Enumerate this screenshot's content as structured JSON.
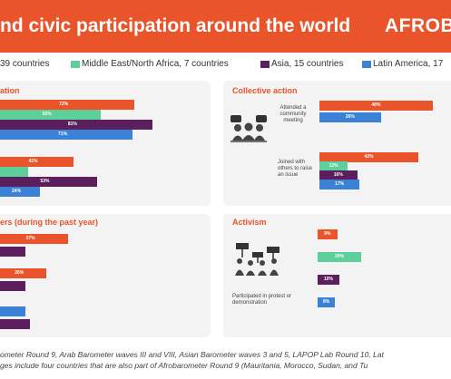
{
  "header": {
    "title": "nd civic participation around the world",
    "brand": "AFROBA"
  },
  "legend": [
    {
      "label": "39 countries",
      "color": "#e9542b"
    },
    {
      "label": "Middle East/North Africa, 7 countries",
      "color": "#5ccf9b"
    },
    {
      "label": "Asia, 15 countries",
      "color": "#5a1f5c"
    },
    {
      "label": "Latin America, 17",
      "color": "#3b82d6"
    }
  ],
  "colors": {
    "africa": "#e9542b",
    "mena": "#5ccf9b",
    "asia": "#5a1f5c",
    "latin_america": "#3b82d6",
    "accent": "#e9542b",
    "panel": "#f3f3f3"
  },
  "panels": {
    "top_left": {
      "title": "ation"
    },
    "collective": {
      "title": "Collective action"
    },
    "bottom_left": {
      "title": "ers (during the past year)"
    },
    "activism": {
      "title": "Activism"
    }
  },
  "chart_data": [
    {
      "type": "bar",
      "title": "ation",
      "unit": "%",
      "series": [
        {
          "name": "39 countries",
          "values": [
            72,
            41
          ]
        },
        {
          "name": "Middle East/North Africa, 7 countries",
          "values": [
            55,
            null
          ]
        },
        {
          "name": "Asia, 15 countries",
          "values": [
            81,
            53
          ]
        },
        {
          "name": "Latin America, 17",
          "values": [
            71,
            24
          ]
        }
      ]
    },
    {
      "type": "bar",
      "title": "Collective action",
      "unit": "%",
      "categories": [
        "Attended a community meeting",
        "Joined with others to raise an issue"
      ],
      "series": [
        {
          "name": "39 countries",
          "values": [
            48,
            42
          ]
        },
        {
          "name": "Middle East/North Africa, 7 countries",
          "values": [
            null,
            12
          ]
        },
        {
          "name": "Asia, 15 countries",
          "values": [
            null,
            16
          ]
        },
        {
          "name": "Latin America, 17",
          "values": [
            26,
            17
          ]
        }
      ]
    },
    {
      "type": "bar",
      "title": "ers (during the past year)",
      "unit": "%",
      "series": [
        {
          "name": "39 countries",
          "values": [
            37,
            26,
            null
          ]
        },
        {
          "name": "Asia, 15 countries",
          "values": [
            null,
            null,
            null
          ]
        },
        {
          "name": "Latin America, 17",
          "values": [
            null,
            null,
            null
          ]
        }
      ]
    },
    {
      "type": "bar",
      "title": "Activism",
      "unit": "%",
      "categories": [
        "Participated in protest or demonstration"
      ],
      "series": [
        {
          "name": "39 countries",
          "values": [
            9
          ]
        },
        {
          "name": "Middle East/North Africa, 7 countries",
          "values": [
            20
          ]
        },
        {
          "name": "Asia, 15 countries",
          "values": [
            10
          ]
        },
        {
          "name": "Latin America, 17",
          "values": [
            8
          ]
        }
      ]
    }
  ],
  "collective_labels": [
    "Attended a community meeting",
    "Joined with others to raise an issue"
  ],
  "activism_label": "Participated in protest or demonstration",
  "footer": {
    "line1": "ometer Round 9, Arab Barometer waves III and VIII, Asian Barometer waves 3 and 5, LAPOP Lab Round 10, Lat",
    "line2": "ges include four countries that are also part of Afrobarometer Round 9 (Mauritania, Morocco, Sudan, and Tu"
  }
}
